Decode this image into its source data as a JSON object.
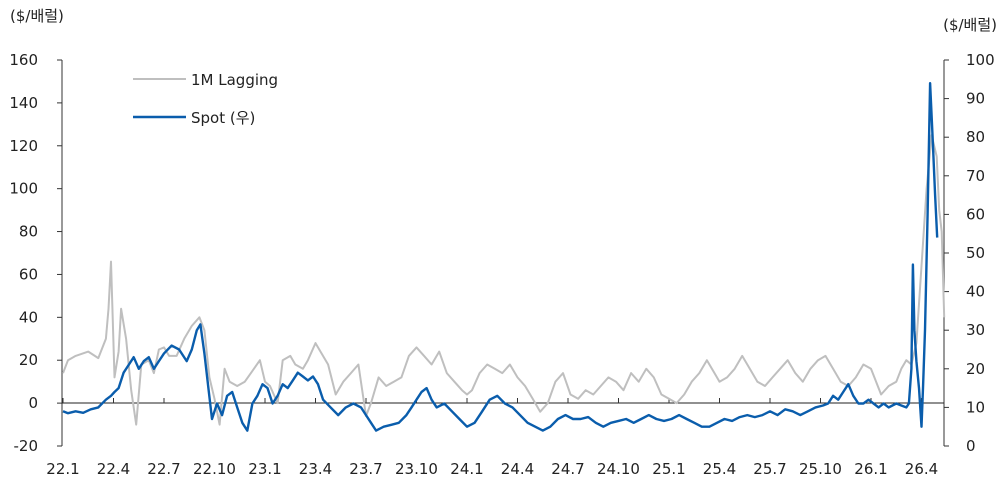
{
  "chart_data": {
    "type": "line",
    "ylabel_left": "($/배럴)",
    "ylabel_right": "($/배럴)",
    "y_left": {
      "min": -20,
      "max": 160,
      "ticks": [
        -20,
        0,
        20,
        40,
        60,
        80,
        100,
        120,
        140,
        160
      ]
    },
    "y_right": {
      "min": 0,
      "max": 100,
      "ticks": [
        0,
        10,
        20,
        30,
        40,
        50,
        60,
        70,
        80,
        90,
        100
      ]
    },
    "x_tick_labels": [
      "22.1",
      "22.4",
      "22.7",
      "22.10",
      "23.1",
      "23.4",
      "23.7",
      "23.10",
      "24.1",
      "24.4",
      "24.7",
      "24.10",
      "25.1",
      "25.4",
      "25.7",
      "25.10",
      "26.1",
      "26.4"
    ],
    "grid": false,
    "legend": "top-left",
    "series": [
      {
        "name": "1M Lagging",
        "axis": "left",
        "color": "#bfbfbf",
        "points": [
          [
            0,
            14
          ],
          [
            0.1,
            20
          ],
          [
            0.25,
            22
          ],
          [
            0.5,
            24
          ],
          [
            0.7,
            21
          ],
          [
            0.85,
            30
          ],
          [
            0.9,
            44
          ],
          [
            0.95,
            66
          ],
          [
            1.02,
            12
          ],
          [
            1.1,
            24
          ],
          [
            1.15,
            44
          ],
          [
            1.25,
            30
          ],
          [
            1.35,
            6
          ],
          [
            1.45,
            -10
          ],
          [
            1.55,
            18
          ],
          [
            1.7,
            20
          ],
          [
            1.8,
            14
          ],
          [
            1.9,
            25
          ],
          [
            2.0,
            26
          ],
          [
            2.1,
            22
          ],
          [
            2.25,
            22
          ],
          [
            2.4,
            30
          ],
          [
            2.55,
            36
          ],
          [
            2.7,
            40
          ],
          [
            2.8,
            34
          ],
          [
            2.9,
            12
          ],
          [
            3.0,
            2
          ],
          [
            3.1,
            -10
          ],
          [
            3.2,
            16
          ],
          [
            3.3,
            10
          ],
          [
            3.45,
            8
          ],
          [
            3.6,
            10
          ],
          [
            3.75,
            15
          ],
          [
            3.9,
            20
          ],
          [
            4.0,
            10
          ],
          [
            4.1,
            8
          ],
          [
            4.25,
            0
          ],
          [
            4.35,
            20
          ],
          [
            4.5,
            22
          ],
          [
            4.6,
            18
          ],
          [
            4.75,
            16
          ],
          [
            4.85,
            20
          ],
          [
            5.0,
            28
          ],
          [
            5.1,
            24
          ],
          [
            5.25,
            18
          ],
          [
            5.4,
            4
          ],
          [
            5.55,
            10
          ],
          [
            5.7,
            14
          ],
          [
            5.85,
            18
          ],
          [
            6.0,
            -6
          ],
          [
            6.1,
            0
          ],
          [
            6.25,
            12
          ],
          [
            6.4,
            8
          ],
          [
            6.55,
            10
          ],
          [
            6.7,
            12
          ],
          [
            6.85,
            22
          ],
          [
            7.0,
            26
          ],
          [
            7.15,
            22
          ],
          [
            7.3,
            18
          ],
          [
            7.45,
            24
          ],
          [
            7.6,
            14
          ],
          [
            7.75,
            10
          ],
          [
            7.9,
            6
          ],
          [
            8.0,
            4
          ],
          [
            8.1,
            6
          ],
          [
            8.25,
            14
          ],
          [
            8.4,
            18
          ],
          [
            8.55,
            16
          ],
          [
            8.7,
            14
          ],
          [
            8.85,
            18
          ],
          [
            9.0,
            12
          ],
          [
            9.15,
            8
          ],
          [
            9.3,
            2
          ],
          [
            9.45,
            -4
          ],
          [
            9.6,
            0
          ],
          [
            9.75,
            10
          ],
          [
            9.9,
            14
          ],
          [
            10.05,
            4
          ],
          [
            10.2,
            2
          ],
          [
            10.35,
            6
          ],
          [
            10.5,
            4
          ],
          [
            10.65,
            8
          ],
          [
            10.8,
            12
          ],
          [
            10.95,
            10
          ],
          [
            11.1,
            6
          ],
          [
            11.25,
            14
          ],
          [
            11.4,
            10
          ],
          [
            11.55,
            16
          ],
          [
            11.7,
            12
          ],
          [
            11.85,
            4
          ],
          [
            12.0,
            2
          ],
          [
            12.15,
            0
          ],
          [
            12.3,
            4
          ],
          [
            12.45,
            10
          ],
          [
            12.6,
            14
          ],
          [
            12.75,
            20
          ],
          [
            12.9,
            14
          ],
          [
            13.0,
            10
          ],
          [
            13.15,
            12
          ],
          [
            13.3,
            16
          ],
          [
            13.45,
            22
          ],
          [
            13.6,
            16
          ],
          [
            13.75,
            10
          ],
          [
            13.9,
            8
          ],
          [
            14.05,
            12
          ],
          [
            14.2,
            16
          ],
          [
            14.35,
            20
          ],
          [
            14.5,
            14
          ],
          [
            14.65,
            10
          ],
          [
            14.8,
            16
          ],
          [
            14.95,
            20
          ],
          [
            15.1,
            22
          ],
          [
            15.25,
            16
          ],
          [
            15.4,
            10
          ],
          [
            15.55,
            8
          ],
          [
            15.7,
            12
          ],
          [
            15.85,
            18
          ],
          [
            16.0,
            16
          ],
          [
            16.1,
            10
          ],
          [
            16.2,
            4
          ],
          [
            16.35,
            8
          ],
          [
            16.5,
            10
          ],
          [
            16.6,
            16
          ],
          [
            16.7,
            20
          ],
          [
            16.8,
            18
          ],
          [
            16.9,
            28
          ],
          [
            17.0,
            64
          ],
          [
            17.1,
            100
          ],
          [
            17.2,
            125
          ],
          [
            17.3,
            115
          ],
          [
            17.35,
            90
          ],
          [
            17.4,
            80
          ],
          [
            17.45,
            40
          ]
        ]
      },
      {
        "name": "Spot (우)",
        "axis": "right",
        "color": "#0a5dac",
        "points": [
          [
            0,
            9
          ],
          [
            0.1,
            8.5
          ],
          [
            0.25,
            9
          ],
          [
            0.4,
            8.6
          ],
          [
            0.55,
            9.5
          ],
          [
            0.7,
            10
          ],
          [
            0.85,
            12
          ],
          [
            0.95,
            13
          ],
          [
            1.02,
            14
          ],
          [
            1.1,
            15
          ],
          [
            1.2,
            19
          ],
          [
            1.3,
            21
          ],
          [
            1.4,
            23
          ],
          [
            1.5,
            20
          ],
          [
            1.6,
            22
          ],
          [
            1.7,
            23
          ],
          [
            1.8,
            20
          ],
          [
            1.9,
            22
          ],
          [
            2.0,
            24
          ],
          [
            2.15,
            26
          ],
          [
            2.3,
            25
          ],
          [
            2.45,
            22
          ],
          [
            2.55,
            25
          ],
          [
            2.65,
            30
          ],
          [
            2.72,
            31.5
          ],
          [
            2.8,
            24
          ],
          [
            2.88,
            15
          ],
          [
            2.95,
            7
          ],
          [
            3.05,
            11
          ],
          [
            3.15,
            8
          ],
          [
            3.25,
            13
          ],
          [
            3.35,
            14
          ],
          [
            3.45,
            10
          ],
          [
            3.55,
            6
          ],
          [
            3.65,
            4
          ],
          [
            3.75,
            11
          ],
          [
            3.85,
            13
          ],
          [
            3.95,
            16
          ],
          [
            4.05,
            15
          ],
          [
            4.15,
            11
          ],
          [
            4.25,
            13
          ],
          [
            4.35,
            16
          ],
          [
            4.45,
            15
          ],
          [
            4.55,
            17
          ],
          [
            4.65,
            19
          ],
          [
            4.75,
            18
          ],
          [
            4.85,
            17
          ],
          [
            4.95,
            18
          ],
          [
            5.05,
            16
          ],
          [
            5.15,
            12
          ],
          [
            5.3,
            10
          ],
          [
            5.45,
            8
          ],
          [
            5.6,
            10
          ],
          [
            5.75,
            11
          ],
          [
            5.9,
            10
          ],
          [
            6.0,
            8
          ],
          [
            6.1,
            6
          ],
          [
            6.2,
            4
          ],
          [
            6.35,
            5
          ],
          [
            6.5,
            5.5
          ],
          [
            6.65,
            6
          ],
          [
            6.8,
            8
          ],
          [
            6.9,
            10
          ],
          [
            7.0,
            12
          ],
          [
            7.1,
            14
          ],
          [
            7.2,
            15
          ],
          [
            7.3,
            12
          ],
          [
            7.4,
            10
          ],
          [
            7.55,
            11
          ],
          [
            7.7,
            9
          ],
          [
            7.85,
            7
          ],
          [
            8.0,
            5
          ],
          [
            8.15,
            6
          ],
          [
            8.3,
            9
          ],
          [
            8.45,
            12
          ],
          [
            8.6,
            13
          ],
          [
            8.75,
            11
          ],
          [
            8.9,
            10
          ],
          [
            9.05,
            8
          ],
          [
            9.2,
            6
          ],
          [
            9.35,
            5
          ],
          [
            9.5,
            4
          ],
          [
            9.65,
            5
          ],
          [
            9.8,
            7
          ],
          [
            9.95,
            8
          ],
          [
            10.1,
            7
          ],
          [
            10.25,
            7
          ],
          [
            10.4,
            7.5
          ],
          [
            10.55,
            6
          ],
          [
            10.7,
            5
          ],
          [
            10.85,
            6
          ],
          [
            11.0,
            6.5
          ],
          [
            11.15,
            7
          ],
          [
            11.3,
            6
          ],
          [
            11.45,
            7
          ],
          [
            11.6,
            8
          ],
          [
            11.75,
            7
          ],
          [
            11.9,
            6.5
          ],
          [
            12.05,
            7
          ],
          [
            12.2,
            8
          ],
          [
            12.35,
            7
          ],
          [
            12.5,
            6
          ],
          [
            12.65,
            5
          ],
          [
            12.8,
            5
          ],
          [
            12.95,
            6
          ],
          [
            13.1,
            7
          ],
          [
            13.25,
            6.5
          ],
          [
            13.4,
            7.5
          ],
          [
            13.55,
            8
          ],
          [
            13.7,
            7.5
          ],
          [
            13.85,
            8
          ],
          [
            14.0,
            9
          ],
          [
            14.15,
            8
          ],
          [
            14.3,
            9.5
          ],
          [
            14.45,
            9
          ],
          [
            14.6,
            8
          ],
          [
            14.75,
            9
          ],
          [
            14.9,
            10
          ],
          [
            15.05,
            10.5
          ],
          [
            15.15,
            11
          ],
          [
            15.25,
            13
          ],
          [
            15.35,
            12
          ],
          [
            15.45,
            14
          ],
          [
            15.55,
            16
          ],
          [
            15.65,
            13
          ],
          [
            15.75,
            11
          ],
          [
            15.85,
            11
          ],
          [
            15.95,
            12
          ],
          [
            16.05,
            11
          ],
          [
            16.15,
            10
          ],
          [
            16.25,
            11
          ],
          [
            16.35,
            10
          ],
          [
            16.5,
            11
          ],
          [
            16.6,
            10.5
          ],
          [
            16.7,
            10
          ],
          [
            16.75,
            11
          ],
          [
            16.8,
            20
          ],
          [
            16.83,
            47
          ],
          [
            16.86,
            30
          ],
          [
            16.9,
            22
          ],
          [
            16.95,
            15
          ],
          [
            17.0,
            5
          ],
          [
            17.03,
            15
          ],
          [
            17.07,
            30
          ],
          [
            17.12,
            60
          ],
          [
            17.17,
            94
          ],
          [
            17.22,
            80
          ],
          [
            17.27,
            65
          ],
          [
            17.31,
            54
          ]
        ]
      }
    ]
  }
}
